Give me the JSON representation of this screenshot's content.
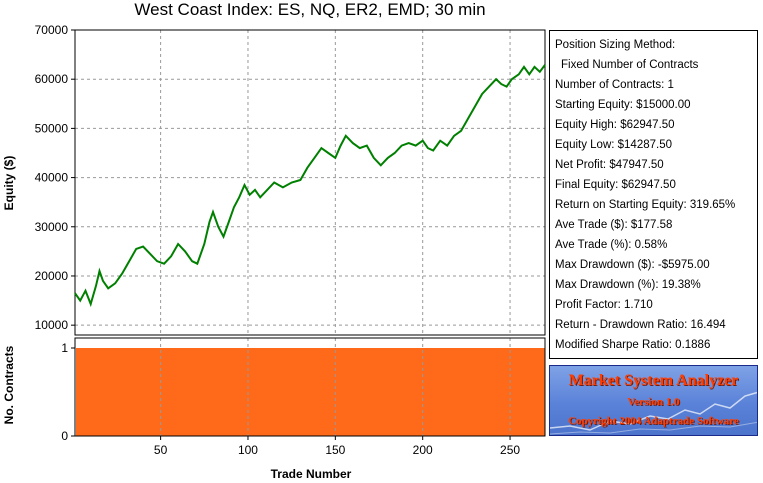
{
  "chart_data": [
    {
      "type": "line",
      "title": "West Coast Index: ES, NQ, ER2, EMD; 30 min",
      "xlabel": "Trade Number",
      "ylabel": "Equity ($)",
      "xlim": [
        1,
        270
      ],
      "ylim": [
        8000,
        70000
      ],
      "x_ticks": [
        50,
        100,
        150,
        200,
        250
      ],
      "y_ticks": [
        10000,
        20000,
        30000,
        40000,
        50000,
        60000,
        70000
      ],
      "grid": true,
      "line_color": "#008000",
      "series": [
        {
          "points": [
            [
              1,
              16500
            ],
            [
              4,
              15000
            ],
            [
              7,
              17000
            ],
            [
              10,
              14300
            ],
            [
              13,
              18000
            ],
            [
              15,
              21000
            ],
            [
              17,
              19000
            ],
            [
              20,
              17500
            ],
            [
              24,
              18500
            ],
            [
              28,
              20500
            ],
            [
              32,
              23000
            ],
            [
              36,
              25500
            ],
            [
              40,
              26000
            ],
            [
              44,
              24500
            ],
            [
              48,
              23000
            ],
            [
              52,
              22500
            ],
            [
              56,
              24000
            ],
            [
              60,
              26500
            ],
            [
              64,
              25000
            ],
            [
              68,
              23000
            ],
            [
              71,
              22500
            ],
            [
              75,
              26500
            ],
            [
              78,
              31000
            ],
            [
              80,
              33000
            ],
            [
              83,
              30000
            ],
            [
              86,
              28000
            ],
            [
              89,
              31000
            ],
            [
              92,
              34000
            ],
            [
              95,
              36000
            ],
            [
              98,
              38500
            ],
            [
              101,
              36500
            ],
            [
              104,
              37500
            ],
            [
              107,
              36000
            ],
            [
              111,
              37500
            ],
            [
              115,
              39000
            ],
            [
              120,
              38000
            ],
            [
              125,
              39000
            ],
            [
              130,
              39500
            ],
            [
              134,
              42000
            ],
            [
              138,
              44000
            ],
            [
              142,
              46000
            ],
            [
              146,
              45000
            ],
            [
              150,
              44000
            ],
            [
              153,
              46500
            ],
            [
              156,
              48500
            ],
            [
              160,
              47000
            ],
            [
              164,
              46000
            ],
            [
              168,
              46500
            ],
            [
              172,
              44000
            ],
            [
              176,
              42500
            ],
            [
              180,
              44000
            ],
            [
              184,
              45000
            ],
            [
              188,
              46500
            ],
            [
              192,
              47000
            ],
            [
              196,
              46500
            ],
            [
              200,
              47500
            ],
            [
              203,
              46000
            ],
            [
              206,
              45500
            ],
            [
              210,
              47500
            ],
            [
              214,
              46500
            ],
            [
              218,
              48500
            ],
            [
              222,
              49500
            ],
            [
              226,
              52000
            ],
            [
              230,
              54500
            ],
            [
              234,
              57000
            ],
            [
              238,
              58500
            ],
            [
              242,
              60000
            ],
            [
              245,
              59000
            ],
            [
              248,
              58500
            ],
            [
              251,
              60000
            ],
            [
              255,
              61000
            ],
            [
              258,
              62500
            ],
            [
              261,
              61000
            ],
            [
              264,
              62500
            ],
            [
              267,
              61500
            ],
            [
              270,
              62900
            ]
          ]
        }
      ]
    },
    {
      "type": "area",
      "xlabel": "Trade Number",
      "ylabel": "No. Contracts",
      "xlim": [
        1,
        270
      ],
      "ylim": [
        0,
        1
      ],
      "y_ticks": [
        0,
        1
      ],
      "x_ticks": [
        50,
        100,
        150,
        200,
        250
      ],
      "fill_color": "#ff6a1a",
      "values_constant": 1
    }
  ],
  "stats": {
    "lines": [
      "Position Sizing Method:",
      "Fixed Number of Contracts",
      "Number of Contracts: 1",
      "Starting Equity: $15000.00",
      "Equity High: $62947.50",
      "Equity Low: $14287.50",
      "Net Profit: $47947.50",
      "Final Equity: $62947.50",
      "Return on Starting Equity: 319.65%",
      "Ave Trade ($): $177.58",
      "Ave Trade (%): 0.58%",
      "Max Drawdown ($): -$5975.00",
      "Max Drawdown (%): 19.38%",
      "Profit Factor: 1.710",
      "Return - Drawdown Ratio: 16.494",
      "Modified Sharpe Ratio: 0.1886"
    ]
  },
  "logo": {
    "title": "Market System Analyzer",
    "version": "Version 1.0",
    "copyright": "Copyright 2004 Adaptrade Software"
  }
}
